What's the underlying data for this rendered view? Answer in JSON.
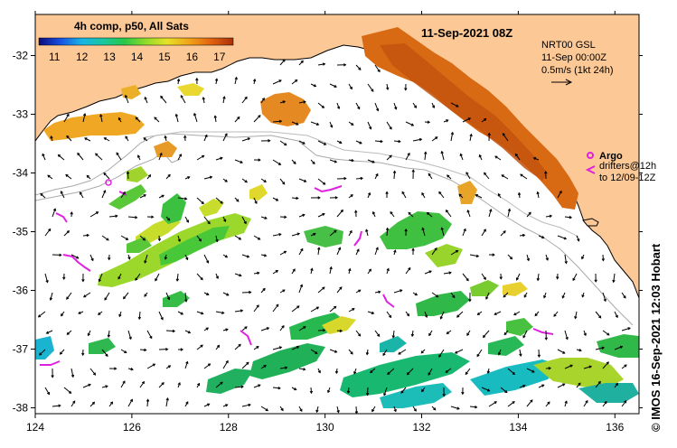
{
  "map": {
    "colorbar": {
      "title": "4h comp, p50, All Sats",
      "ticks": [
        "11",
        "12",
        "13",
        "14",
        "15",
        "16",
        "17"
      ],
      "min": 11,
      "max": 17.5,
      "stops": [
        "#0b0b7a",
        "#1850e0",
        "#18b4e6",
        "#18c8a0",
        "#28c848",
        "#90dc28",
        "#e8e028",
        "#f0a018",
        "#e06010",
        "#a83008"
      ]
    },
    "timestamp": "11-Sep-2021 08Z",
    "current_legend": {
      "line1": "NRT00 GSL",
      "line2": "11-Sep 00:00Z",
      "line3": "0.5m/s (1kt 24h)"
    },
    "argo_legend": {
      "label": "Argo",
      "drifters1": "drifters@12h",
      "drifters2": "to 12/09-12Z",
      "argo_color": "#e020e0"
    },
    "lat_ticks": [
      {
        "value": -32,
        "label": "-32"
      },
      {
        "value": -33,
        "label": "-33"
      },
      {
        "value": -34,
        "label": "-34"
      },
      {
        "value": -35,
        "label": "-35"
      },
      {
        "value": -36,
        "label": "-36"
      },
      {
        "value": -37,
        "label": "-37"
      },
      {
        "value": -38,
        "label": "-38"
      }
    ],
    "lon_ticks": [
      {
        "value": 124,
        "label": "124"
      },
      {
        "value": 126,
        "label": "126"
      },
      {
        "value": 128,
        "label": "128"
      },
      {
        "value": 130,
        "label": "130"
      },
      {
        "value": 132,
        "label": "132"
      },
      {
        "value": 134,
        "label": "134"
      },
      {
        "value": 136,
        "label": "136"
      }
    ],
    "extent": {
      "lon_min": 124,
      "lon_max": 136.5,
      "lat_min": -38.1,
      "lat_max": -31.3
    },
    "land_color": "#fbc896",
    "credit": "© IMOS 16-Sep-2021 12:03 Hobart"
  }
}
